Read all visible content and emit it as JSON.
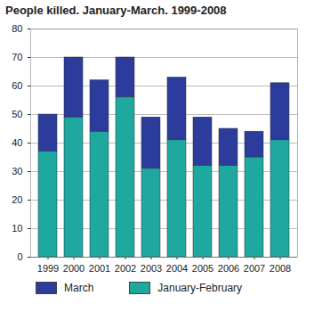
{
  "chart_data": {
    "type": "bar",
    "title": "People killed. January-March. 1999-2008",
    "categories": [
      "1999",
      "2000",
      "2001",
      "2002",
      "2003",
      "2004",
      "2005",
      "2006",
      "2007",
      "2008"
    ],
    "series": [
      {
        "name": "March",
        "color": "#2b3c9c",
        "values": [
          13,
          21,
          18,
          14,
          18,
          22,
          17,
          13,
          9,
          20
        ]
      },
      {
        "name": "January-February",
        "color": "#1ea8a0",
        "values": [
          37,
          49,
          44,
          56,
          31,
          41,
          32,
          32,
          35,
          41
        ]
      }
    ],
    "stacked": true,
    "ylim": [
      0,
      80
    ],
    "yticks": [
      0,
      10,
      20,
      30,
      40,
      50,
      60,
      70,
      80
    ],
    "grid": true,
    "legend": "bottom"
  }
}
